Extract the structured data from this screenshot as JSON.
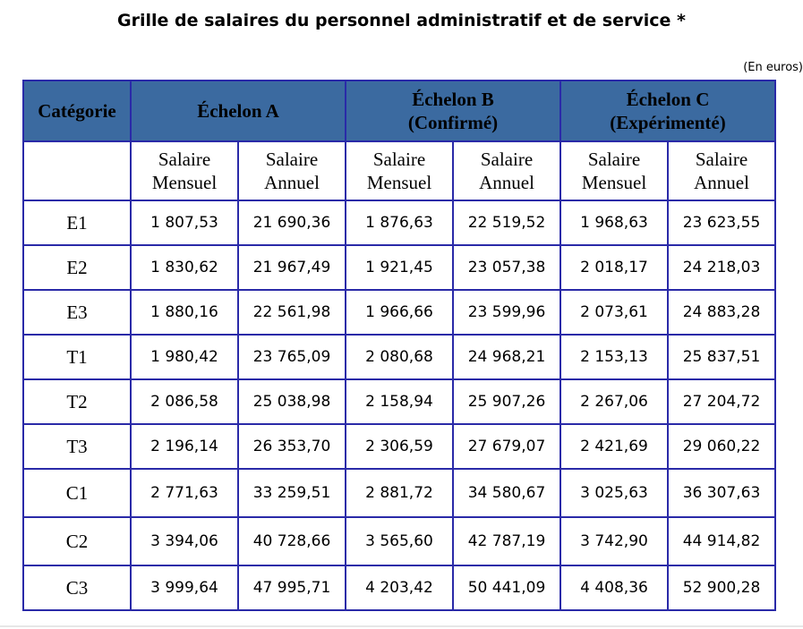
{
  "title": "Grille de salaires du personnel administratif et de service *",
  "unit_note": "(En euros)",
  "table": {
    "header": {
      "category": "Catégorie",
      "echelon_a": "Échelon A",
      "echelon_b_line1": "Échelon B",
      "echelon_b_line2": "(Confirmé)",
      "echelon_c_line1": "Échelon C",
      "echelon_c_line2": "(Expérimenté)"
    },
    "subheader": {
      "salaire": "Salaire",
      "mensuel": "Mensuel",
      "annuel": "Annuel"
    },
    "rows": [
      {
        "cat": "E1",
        "a_m": "1 807,53",
        "a_a": "21 690,36",
        "b_m": "1 876,63",
        "b_a": "22 519,52",
        "c_m": "1 968,63",
        "c_a": "23 623,55"
      },
      {
        "cat": "E2",
        "a_m": "1 830,62",
        "a_a": "21 967,49",
        "b_m": "1 921,45",
        "b_a": "23 057,38",
        "c_m": "2 018,17",
        "c_a": "24 218,03"
      },
      {
        "cat": "E3",
        "a_m": "1 880,16",
        "a_a": "22 561,98",
        "b_m": "1 966,66",
        "b_a": "23 599,96",
        "c_m": "2 073,61",
        "c_a": "24 883,28"
      },
      {
        "cat": "T1",
        "a_m": "1 980,42",
        "a_a": "23 765,09",
        "b_m": "2 080,68",
        "b_a": "24 968,21",
        "c_m": "2 153,13",
        "c_a": "25 837,51"
      },
      {
        "cat": "T2",
        "a_m": "2 086,58",
        "a_a": "25 038,98",
        "b_m": "2 158,94",
        "b_a": "25 907,26",
        "c_m": "2 267,06",
        "c_a": "27 204,72"
      },
      {
        "cat": "T3",
        "a_m": "2 196,14",
        "a_a": "26 353,70",
        "b_m": "2 306,59",
        "b_a": "27 679,07",
        "c_m": "2 421,69",
        "c_a": "29 060,22"
      },
      {
        "cat": "C1",
        "a_m": "2 771,63",
        "a_a": "33 259,51",
        "b_m": "2 881,72",
        "b_a": "34 580,67",
        "c_m": "3 025,63",
        "c_a": "36 307,63"
      },
      {
        "cat": "C2",
        "a_m": "3 394,06",
        "a_a": "40 728,66",
        "b_m": "3 565,60",
        "b_a": "42 787,19",
        "c_m": "3 742,90",
        "c_a": "44 914,82"
      },
      {
        "cat": "C3",
        "a_m": "3 999,64",
        "a_a": "47 995,71",
        "b_m": "4 203,42",
        "b_a": "50 441,09",
        "c_m": "4 408,36",
        "c_a": "52 900,28"
      }
    ]
  },
  "colors": {
    "header_bg": "#3b6aa0",
    "border": "#2a2aa8"
  }
}
